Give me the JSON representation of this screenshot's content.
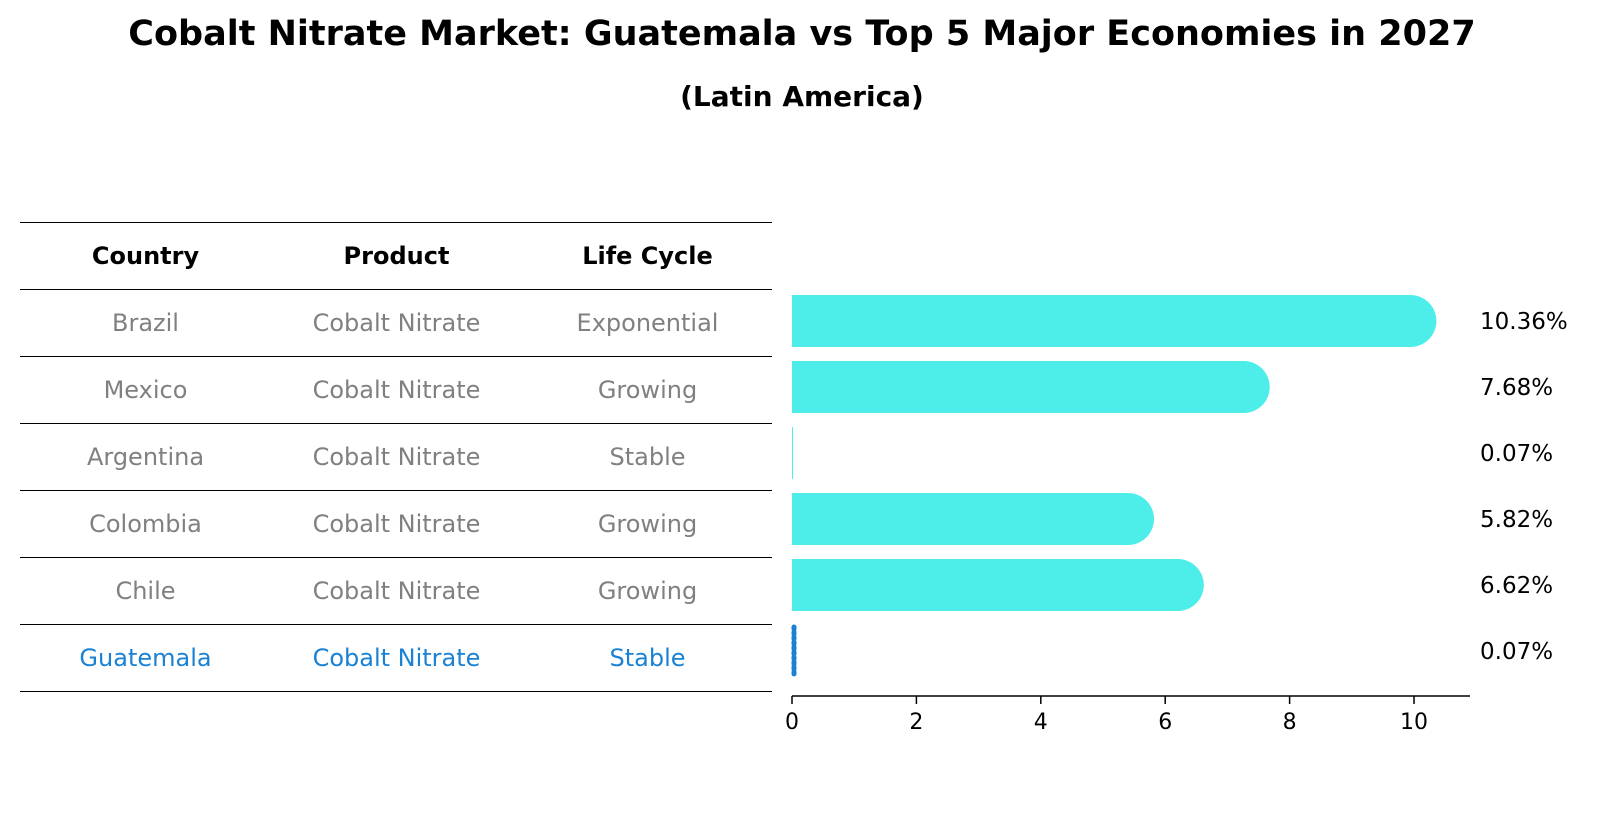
{
  "chart_data": {
    "type": "bar",
    "orientation": "horizontal",
    "title": "Cobalt Nitrate Market: Guatemala vs Top 5 Major Economies in 2027",
    "subtitle": "(Latin America)",
    "table": {
      "columns": [
        "Country",
        "Product",
        "Life Cycle"
      ],
      "rows": [
        {
          "country": "Brazil",
          "product": "Cobalt Nitrate",
          "life_cycle": "Exponential"
        },
        {
          "country": "Mexico",
          "product": "Cobalt Nitrate",
          "life_cycle": "Growing"
        },
        {
          "country": "Argentina",
          "product": "Cobalt Nitrate",
          "life_cycle": "Stable"
        },
        {
          "country": "Colombia",
          "product": "Cobalt Nitrate",
          "life_cycle": "Growing"
        },
        {
          "country": "Chile",
          "product": "Cobalt Nitrate",
          "life_cycle": "Growing"
        },
        {
          "country": "Guatemala",
          "product": "Cobalt Nitrate",
          "life_cycle": "Stable"
        }
      ]
    },
    "categories": [
      "Brazil",
      "Mexico",
      "Argentina",
      "Colombia",
      "Chile",
      "Guatemala"
    ],
    "values": [
      10.36,
      7.68,
      0.07,
      5.82,
      6.62,
      0.07
    ],
    "value_labels": [
      "10.36%",
      "7.68%",
      "0.07%",
      "5.82%",
      "6.62%",
      "0.07%"
    ],
    "highlight": "Guatemala",
    "xlim": [
      0,
      10.9
    ],
    "xticks": [
      0,
      2,
      4,
      6,
      8,
      10
    ],
    "colors": {
      "bar": "#4deeea",
      "highlight": "#1a82d4",
      "table_text": "#808080"
    }
  }
}
